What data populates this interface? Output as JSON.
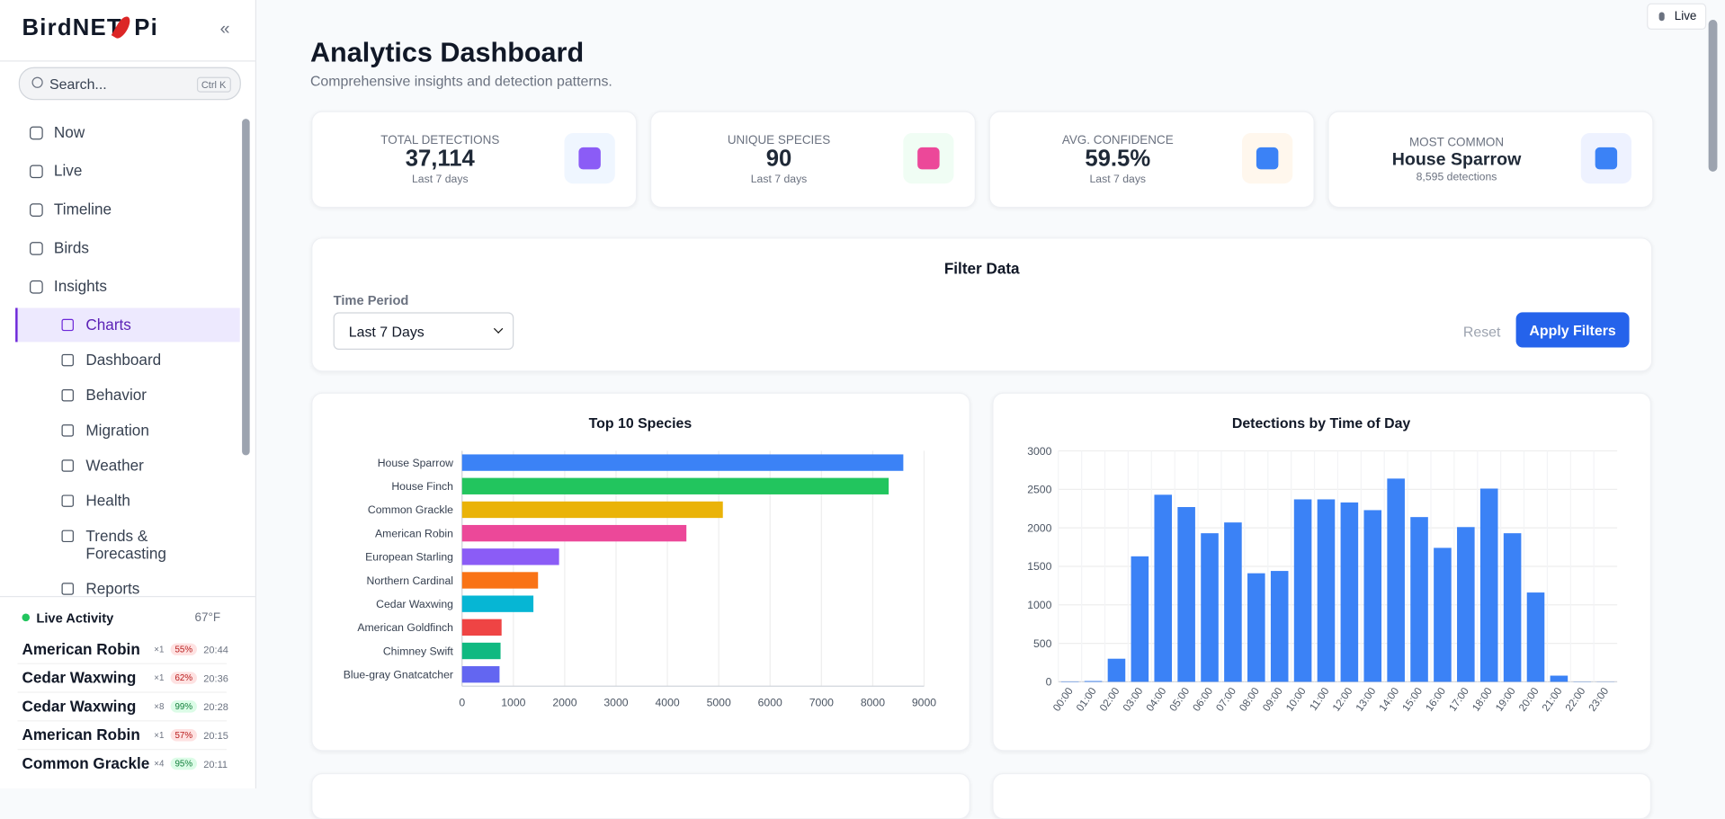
{
  "sidebar": {
    "logo": {
      "left": "BirdNET",
      "right": "Pi"
    },
    "collapse": "«",
    "search": {
      "placeholder": "Search...",
      "shortcut": "Ctrl K"
    },
    "nav": [
      "Now",
      "Live",
      "Timeline",
      "Birds",
      "Insights"
    ],
    "subnav": [
      "Charts",
      "Dashboard",
      "Behavior",
      "Migration",
      "Weather",
      "Health",
      "Trends & Forecasting",
      "Reports"
    ],
    "live_activity": {
      "title": "Live Activity",
      "temperature": "67°F",
      "items": [
        {
          "name": "American Robin",
          "count": "×1",
          "confidence": "55%",
          "time": "20:44"
        },
        {
          "name": "Cedar Waxwing",
          "count": "×1",
          "confidence": "62%",
          "time": "20:36"
        },
        {
          "name": "Cedar Waxwing",
          "count": "×8",
          "confidence": "99%",
          "time": "20:28"
        },
        {
          "name": "American Robin",
          "count": "×1",
          "confidence": "57%",
          "time": "20:15"
        },
        {
          "name": "Common Grackle",
          "count": "×4",
          "confidence": "95%",
          "time": "20:11"
        }
      ]
    }
  },
  "header": {
    "title": "Analytics Dashboard",
    "subtitle": "Comprehensive insights and detection patterns.",
    "live_button": "Live"
  },
  "stats": [
    {
      "label": "TOTAL DETECTIONS",
      "value": "37,114",
      "note": "Last 7 days"
    },
    {
      "label": "UNIQUE SPECIES",
      "value": "90",
      "note": "Last 7 days"
    },
    {
      "label": "AVG. CONFIDENCE",
      "value": "59.5%",
      "note": "Last 7 days"
    },
    {
      "label": "MOST COMMON",
      "value": "House Sparrow",
      "note": "8,595 detections"
    }
  ],
  "filter": {
    "title": "Filter Data",
    "label": "Time Period",
    "select": "Last 7 Days",
    "reset": "Reset",
    "apply": "Apply Filters"
  },
  "chart_data": [
    {
      "type": "hbar",
      "title": "Top 10 Species",
      "categories": [
        "House Sparrow",
        "House Finch",
        "Common Grackle",
        "American Robin",
        "European Starling",
        "Northern Cardinal",
        "Cedar Waxwing",
        "American Goldfinch",
        "Chimney Swift",
        "Blue-gray Gnatcatcher"
      ],
      "values": [
        8595,
        8310,
        5080,
        4370,
        1890,
        1480,
        1390,
        770,
        750,
        730
      ],
      "colors": [
        "#3b82f6",
        "#22c55e",
        "#eab308",
        "#ec4899",
        "#8b5cf6",
        "#f97316",
        "#06b6d4",
        "#ef4444",
        "#10b981",
        "#6366f1"
      ],
      "xlim": [
        0,
        9000
      ],
      "xticks": [
        0,
        1000,
        2000,
        3000,
        4000,
        5000,
        6000,
        7000,
        8000,
        9000
      ],
      "grid": true
    },
    {
      "type": "bar",
      "title": "Detections by Time of Day",
      "categories": [
        "00:00",
        "01:00",
        "02:00",
        "03:00",
        "04:00",
        "05:00",
        "06:00",
        "07:00",
        "08:00",
        "09:00",
        "10:00",
        "11:00",
        "12:00",
        "13:00",
        "14:00",
        "15:00",
        "16:00",
        "17:00",
        "18:00",
        "19:00",
        "20:00",
        "21:00",
        "22:00",
        "23:00"
      ],
      "values": [
        5,
        10,
        300,
        1630,
        2430,
        2270,
        1930,
        2070,
        1410,
        1440,
        2370,
        2370,
        2330,
        2230,
        2640,
        2140,
        1740,
        2010,
        2510,
        1930,
        1160,
        80,
        3,
        2
      ],
      "color": "#3b82f6",
      "ylim": [
        0,
        3000
      ],
      "yticks": [
        0,
        500,
        1000,
        1500,
        2000,
        2500,
        3000
      ],
      "grid": true
    }
  ]
}
